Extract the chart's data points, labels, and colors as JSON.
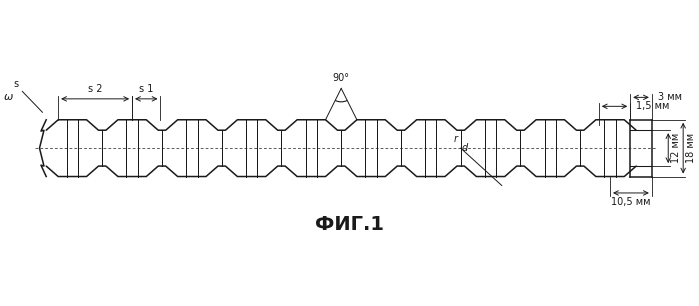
{
  "title": "ФИГ.1",
  "title_fontsize": 14,
  "bg_color": "#ffffff",
  "line_color": "#1a1a1a",
  "figsize": [
    6.99,
    3.06
  ],
  "dpi": 100,
  "annotations": {
    "s1": "s 1",
    "s2": "s 2",
    "s_label": "s",
    "omega": "ω",
    "angle_90": "90°",
    "dim_3mm": "3 мм",
    "dim_15mm": "1,5 мм",
    "dim_12mm": "12 мм",
    "dim_18mm": "18 мм",
    "dim_105mm": "10,5 мм",
    "label_r": "r",
    "label_d": "d"
  }
}
